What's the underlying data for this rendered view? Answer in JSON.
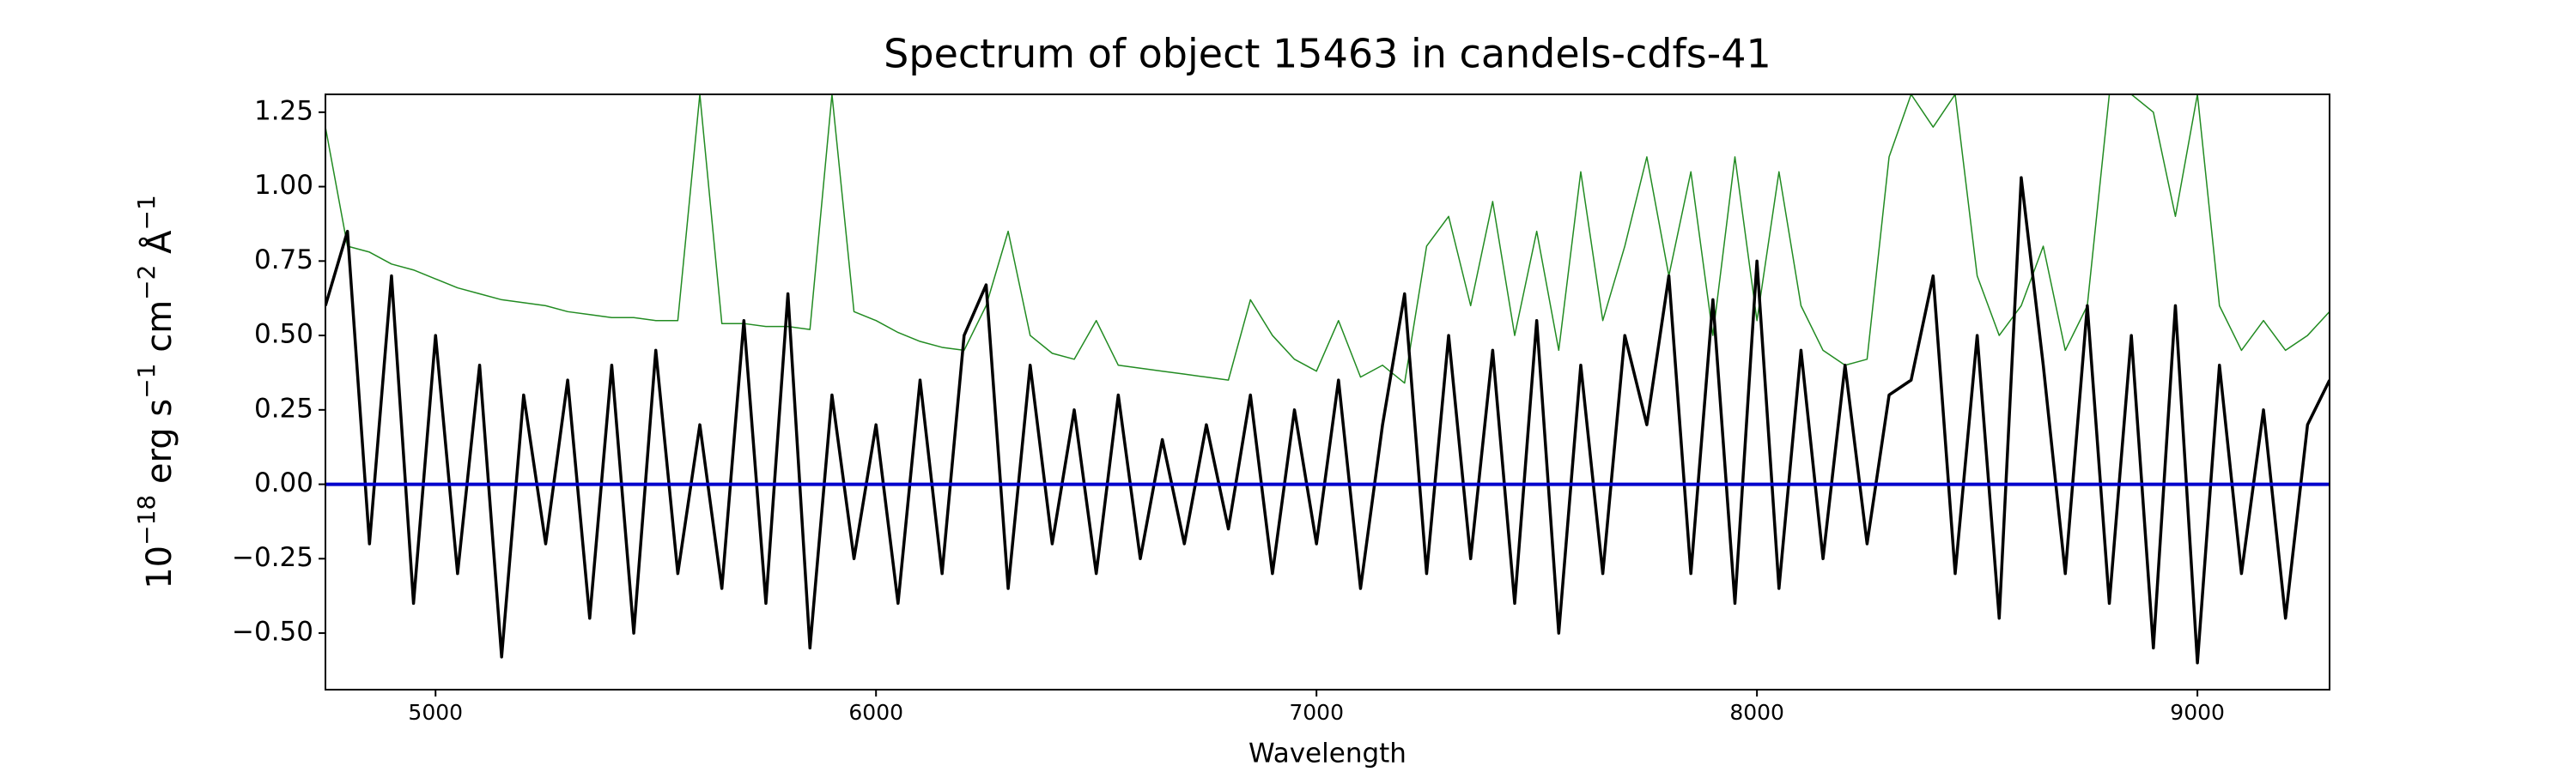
{
  "chart_data": {
    "type": "line",
    "title": "Spectrum of object 15463 in candels-cdfs-41",
    "xlabel": "Wavelength",
    "ylabel": [
      "10",
      "−18",
      " erg s",
      "−1",
      " cm",
      "−2",
      " Å",
      "−1"
    ],
    "xlim": [
      4750,
      9300
    ],
    "ylim": [
      -0.69,
      1.31
    ],
    "xticks": [
      5000,
      6000,
      7000,
      8000,
      9000
    ],
    "yticks": [
      {
        "value": -0.5,
        "label": "−0.50"
      },
      {
        "value": -0.25,
        "label": "−0.25"
      },
      {
        "value": 0,
        "label": "0.00"
      },
      0.25,
      {
        "value": 0.5,
        "label": "0.50"
      },
      0.75,
      {
        "value": 1,
        "label": "1.00"
      },
      1.25
    ],
    "hlines": [
      {
        "value": 0,
        "color": "#0000cc"
      }
    ],
    "x": [
      4750,
      4800,
      4850,
      4900,
      4950,
      5000,
      5050,
      5100,
      5150,
      5200,
      5250,
      5300,
      5350,
      5400,
      5450,
      5500,
      5550,
      5600,
      5650,
      5700,
      5750,
      5800,
      5850,
      5900,
      5950,
      6000,
      6050,
      6100,
      6150,
      6200,
      6250,
      6300,
      6350,
      6400,
      6450,
      6500,
      6550,
      6600,
      6650,
      6700,
      6750,
      6800,
      6850,
      6900,
      6950,
      7000,
      7050,
      7100,
      7150,
      7200,
      7250,
      7300,
      7350,
      7400,
      7450,
      7500,
      7550,
      7600,
      7650,
      7700,
      7750,
      7800,
      7850,
      7900,
      7950,
      8000,
      8050,
      8100,
      8150,
      8200,
      8250,
      8300,
      8350,
      8400,
      8450,
      8500,
      8550,
      8600,
      8650,
      8700,
      8750,
      8800,
      8850,
      8900,
      8950,
      9000,
      9050,
      9100,
      9150,
      9200,
      9250,
      9300
    ],
    "series": [
      {
        "color": "#228b22",
        "width": 1.5,
        "values": [
          1.2,
          0.8,
          0.78,
          0.74,
          0.72,
          0.69,
          0.66,
          0.64,
          0.62,
          0.61,
          0.6,
          0.58,
          0.57,
          0.56,
          0.56,
          0.55,
          0.55,
          1.31,
          0.54,
          0.54,
          0.53,
          0.53,
          0.52,
          1.31,
          0.58,
          0.55,
          0.51,
          0.48,
          0.46,
          0.45,
          0.6,
          0.85,
          0.5,
          0.44,
          0.42,
          0.55,
          0.4,
          0.39,
          0.38,
          0.37,
          0.36,
          0.35,
          0.62,
          0.5,
          0.42,
          0.38,
          0.55,
          0.36,
          0.4,
          0.34,
          0.8,
          0.9,
          0.6,
          0.95,
          0.5,
          0.85,
          0.45,
          1.05,
          0.55,
          0.8,
          1.1,
          0.7,
          1.05,
          0.5,
          1.1,
          0.55,
          1.05,
          0.6,
          0.45,
          0.4,
          0.42,
          1.1,
          1.31,
          1.2,
          1.31,
          0.7,
          0.5,
          0.6,
          0.8,
          0.45,
          0.6,
          1.31,
          1.31,
          1.25,
          0.9,
          1.31,
          0.6,
          0.45,
          0.55,
          0.45,
          0.5,
          0.58
        ]
      },
      {
        "color": "#000000",
        "width": 3.5,
        "values": [
          0.6,
          0.85,
          -0.2,
          0.7,
          -0.4,
          0.5,
          -0.3,
          0.4,
          -0.58,
          0.3,
          -0.2,
          0.35,
          -0.45,
          0.4,
          -0.5,
          0.45,
          -0.3,
          0.2,
          -0.35,
          0.55,
          -0.4,
          0.64,
          -0.55,
          0.3,
          -0.25,
          0.2,
          -0.4,
          0.35,
          -0.3,
          0.5,
          0.67,
          -0.35,
          0.4,
          -0.2,
          0.25,
          -0.3,
          0.3,
          -0.25,
          0.15,
          -0.2,
          0.2,
          -0.15,
          0.3,
          -0.3,
          0.25,
          -0.2,
          0.35,
          -0.35,
          0.2,
          0.64,
          -0.3,
          0.5,
          -0.25,
          0.45,
          -0.4,
          0.55,
          -0.5,
          0.4,
          -0.3,
          0.5,
          0.2,
          0.7,
          -0.3,
          0.62,
          -0.4,
          0.75,
          -0.35,
          0.45,
          -0.25,
          0.4,
          -0.2,
          0.3,
          0.35,
          0.7,
          -0.3,
          0.5,
          -0.45,
          1.03,
          0.4,
          -0.3,
          0.6,
          -0.4,
          0.5,
          -0.55,
          0.6,
          -0.6,
          0.4,
          -0.3,
          0.25,
          -0.45,
          0.2,
          0.35
        ]
      }
    ]
  }
}
